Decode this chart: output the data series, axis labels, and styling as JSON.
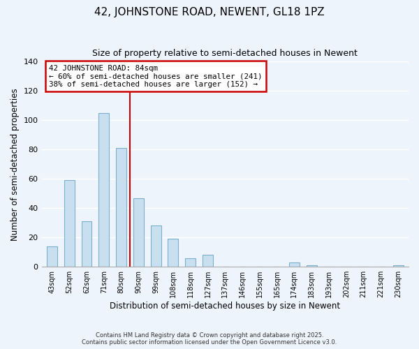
{
  "title": "42, JOHNSTONE ROAD, NEWENT, GL18 1PZ",
  "subtitle": "Size of property relative to semi-detached houses in Newent",
  "xlabel": "Distribution of semi-detached houses by size in Newent",
  "ylabel": "Number of semi-detached properties",
  "categories": [
    "43sqm",
    "52sqm",
    "62sqm",
    "71sqm",
    "80sqm",
    "90sqm",
    "99sqm",
    "108sqm",
    "118sqm",
    "127sqm",
    "137sqm",
    "146sqm",
    "155sqm",
    "165sqm",
    "174sqm",
    "183sqm",
    "193sqm",
    "202sqm",
    "211sqm",
    "221sqm",
    "230sqm"
  ],
  "values": [
    14,
    59,
    31,
    105,
    81,
    47,
    28,
    19,
    6,
    8,
    0,
    0,
    0,
    0,
    3,
    1,
    0,
    0,
    0,
    0,
    1
  ],
  "bar_color": "#c8dff0",
  "bar_edge_color": "#7ab0cc",
  "highlight_line_color": "#cc0000",
  "annotation_title": "42 JOHNSTONE ROAD: 84sqm",
  "annotation_line1": "← 60% of semi-detached houses are smaller (241)",
  "annotation_line2": "38% of semi-detached houses are larger (152) →",
  "annotation_box_color": "#cc0000",
  "ylim": [
    0,
    140
  ],
  "yticks": [
    0,
    20,
    40,
    60,
    80,
    100,
    120,
    140
  ],
  "footer_line1": "Contains HM Land Registry data © Crown copyright and database right 2025.",
  "footer_line2": "Contains public sector information licensed under the Open Government Licence v3.0.",
  "background_color": "#eef4fb",
  "grid_color": "#ffffff"
}
